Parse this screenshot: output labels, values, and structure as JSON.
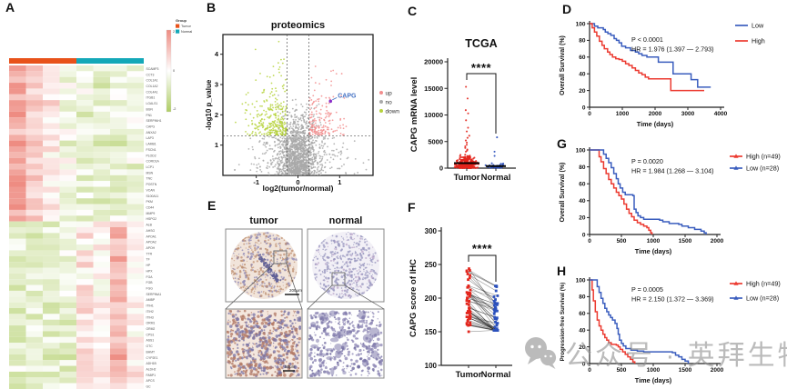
{
  "panels": {
    "a": "A",
    "b": "B",
    "c": "C",
    "d": "D",
    "e": "E",
    "f": "F",
    "g": "G",
    "h": "H"
  },
  "watermark": {
    "text": "公众号 · 英拜生物",
    "icon": "wechat-icon"
  },
  "chart_data": [
    {
      "panel": "A",
      "type": "heatmap",
      "title": "",
      "n_cols": 8,
      "n_up_rows": 27,
      "col_groups": [
        {
          "label": "Tumor",
          "color": "#e8521a",
          "cols": 4
        },
        {
          "label": "Normal",
          "color": "#14a8b8",
          "cols": 4
        }
      ],
      "legend_title": "Group",
      "colorbar_ticks": [
        "2",
        "0",
        "-2"
      ],
      "color_high": "#ee8c82",
      "color_mid": "#ffffff",
      "color_low": "#afcd64",
      "row_pattern_up": [
        1.7,
        1.0,
        0.35,
        -0.3,
        -0.5,
        -0.65,
        -0.55,
        -0.4
      ],
      "row_pattern_down": [
        -0.75,
        -0.6,
        -0.7,
        -0.5,
        0.45,
        0.25,
        1.1,
        0.3
      ],
      "noise": 0.8,
      "seed": 11,
      "gene_labels": [
        "SCAMP3",
        "CCT3",
        "COL1A1",
        "COL1A2",
        "COL4A1",
        "ITGB1",
        "LGALS1",
        "BGN",
        "FN1",
        "SERPINH1",
        "CAPG",
        "ANXA2",
        "LAP3",
        "LAMB1",
        "FSCN1",
        "PLOD2",
        "CORO1A",
        "LCP1",
        "MSN",
        "TNC",
        "POSTN",
        "VCAN",
        "S100A11",
        "PKM",
        "CD44",
        "MMP9",
        "HSPG2",
        "ALB",
        "AHSG",
        "APOA1",
        "APOA2",
        "APOH",
        "TTR",
        "TF",
        "HP",
        "HPX",
        "FGA",
        "FGB",
        "FGG",
        "SERPINA1",
        "AMBP",
        "ITIH1",
        "ITIH2",
        "ITIH3",
        "ORM1",
        "ORM2",
        "CPS1",
        "ASS1",
        "OTC",
        "BHMT",
        "CYP2E1",
        "ADH1B",
        "ALDH2",
        "FABP1",
        "APCS",
        "GC"
      ]
    },
    {
      "panel": "B",
      "type": "scatter",
      "title": "proteomics",
      "xlabel": "log2(tumor/normal)",
      "ylabel": "-log10 p_value",
      "xlim": [
        -1.8,
        1.8
      ],
      "ylim": [
        0,
        4.65
      ],
      "xticks": [
        -1,
        0,
        1
      ],
      "yticks": [
        1,
        2,
        3,
        4
      ],
      "vlines": [
        -0.26,
        0.26
      ],
      "hline": 1.3,
      "legend": [
        {
          "label": "up",
          "color": "#f28e8e"
        },
        {
          "label": "no",
          "color": "#a9a9a9"
        },
        {
          "label": "down",
          "color": "#b6d23c"
        }
      ],
      "highlight": {
        "label": "CAPG",
        "x": 0.78,
        "y": 2.45,
        "point_color": "#8b2fc9",
        "label_color": "#4472c4"
      },
      "counts": {
        "no": 1650,
        "down": 300,
        "up": 175
      },
      "seed": 23
    },
    {
      "panel": "C",
      "type": "scatter",
      "title": "TCGA",
      "ylabel": "CAPG mRNA level",
      "ylim": [
        0,
        20000
      ],
      "yticks": [
        0,
        5000,
        10000,
        15000,
        20000
      ],
      "significance": "****",
      "groups": [
        {
          "label": "Tumor",
          "color": "#e3261d",
          "n": 330,
          "scale": 1000,
          "median": 950,
          "outliers": [
            15300,
            13100,
            10900,
            10300,
            9000,
            7600,
            6900,
            6100,
            5700,
            5200,
            4800,
            4400,
            4100,
            3800,
            3500,
            3300,
            3100
          ]
        },
        {
          "label": "Normal",
          "color": "#2b50bc",
          "n": 45,
          "scale": 300,
          "median": 380,
          "outliers": [
            5800,
            3100,
            2300
          ]
        }
      ],
      "seed": 5
    },
    {
      "panel": "D",
      "type": "line",
      "xlabel": "Time (days)",
      "ylabel": "Overall Survival (%)",
      "xlim": [
        0,
        4000
      ],
      "ylim": [
        0,
        100
      ],
      "xticks": [
        0,
        1000,
        2000,
        3000,
        4000
      ],
      "yticks": [
        0,
        20,
        40,
        60,
        80,
        100
      ],
      "stats": [
        "P < 0.0001",
        "HR = 1.976 (1.397 — 2.793)"
      ],
      "series": [
        {
          "name": "Low",
          "color": "#3a5dbe",
          "points": [
            [
              0,
              100
            ],
            [
              150,
              97
            ],
            [
              250,
              95
            ],
            [
              420,
              93
            ],
            [
              480,
              90
            ],
            [
              560,
              88
            ],
            [
              650,
              86
            ],
            [
              750,
              82
            ],
            [
              820,
              80
            ],
            [
              900,
              77
            ],
            [
              980,
              73
            ],
            [
              1100,
              71
            ],
            [
              1250,
              68
            ],
            [
              1400,
              66
            ],
            [
              1500,
              64
            ],
            [
              1600,
              62
            ],
            [
              1750,
              60
            ],
            [
              2100,
              54
            ],
            [
              2550,
              40
            ],
            [
              3100,
              33
            ],
            [
              3300,
              24
            ],
            [
              3700,
              24
            ]
          ]
        },
        {
          "name": "High",
          "color": "#ec3a30",
          "points": [
            [
              0,
              100
            ],
            [
              80,
              95
            ],
            [
              150,
              90
            ],
            [
              220,
              85
            ],
            [
              300,
              79
            ],
            [
              380,
              74
            ],
            [
              450,
              70
            ],
            [
              550,
              66
            ],
            [
              620,
              63
            ],
            [
              700,
              60
            ],
            [
              800,
              58
            ],
            [
              900,
              57
            ],
            [
              1000,
              55
            ],
            [
              1100,
              52
            ],
            [
              1200,
              50
            ],
            [
              1300,
              47
            ],
            [
              1400,
              44
            ],
            [
              1500,
              41
            ],
            [
              1600,
              39
            ],
            [
              1700,
              36
            ],
            [
              1800,
              34
            ],
            [
              2480,
              20
            ],
            [
              3500,
              20
            ]
          ]
        }
      ]
    },
    {
      "panel": "E",
      "type": "ihc",
      "columns": [
        "tumor",
        "normal"
      ],
      "scale_bars": [
        "200μm",
        "50μm"
      ],
      "seed": 31
    },
    {
      "panel": "F",
      "type": "scatter",
      "ylabel": "CAPG score of IHC",
      "ylim": [
        100,
        300
      ],
      "yticks": [
        100,
        150,
        200,
        250,
        300
      ],
      "groups": [
        {
          "label": "Tumor",
          "color": "#e3261d"
        },
        {
          "label": "Normal",
          "color": "#2b50bc"
        }
      ],
      "n_pairs": 55,
      "significance": "****",
      "seed": 17
    },
    {
      "panel": "G",
      "type": "line",
      "xlabel": "Time (days)",
      "ylabel": "Overall Survival (%)",
      "xlim": [
        0,
        2000
      ],
      "ylim": [
        0,
        100
      ],
      "xticks": [
        0,
        500,
        1000,
        1500,
        2000
      ],
      "yticks": [
        0,
        20,
        40,
        60,
        80,
        100
      ],
      "stats": [
        "P = 0.0020",
        "HR = 1.984 (1.268 — 3.104)"
      ],
      "series": [
        {
          "name": "High (n=49)",
          "color": "#ec3a30",
          "points": [
            [
              0,
              100
            ],
            [
              120,
              100
            ],
            [
              150,
              92
            ],
            [
              180,
              86
            ],
            [
              220,
              78
            ],
            [
              260,
              72
            ],
            [
              300,
              65
            ],
            [
              340,
              60
            ],
            [
              380,
              55
            ],
            [
              420,
              50
            ],
            [
              460,
              46
            ],
            [
              500,
              42
            ],
            [
              540,
              36
            ],
            [
              580,
              30
            ],
            [
              620,
              25
            ],
            [
              660,
              21
            ],
            [
              700,
              17
            ],
            [
              750,
              14
            ],
            [
              800,
              12
            ],
            [
              850,
              10
            ],
            [
              900,
              8
            ],
            [
              930,
              5
            ],
            [
              960,
              2
            ],
            [
              980,
              0
            ]
          ]
        },
        {
          "name": "Low (n=28)",
          "color": "#3a5dbe",
          "points": [
            [
              0,
              100
            ],
            [
              180,
              100
            ],
            [
              220,
              95
            ],
            [
              260,
              90
            ],
            [
              300,
              85
            ],
            [
              340,
              79
            ],
            [
              380,
              72
            ],
            [
              420,
              66
            ],
            [
              450,
              60
            ],
            [
              480,
              55
            ],
            [
              520,
              50
            ],
            [
              560,
              47
            ],
            [
              680,
              46
            ],
            [
              700,
              30
            ],
            [
              730,
              26
            ],
            [
              760,
              22
            ],
            [
              800,
              20
            ],
            [
              850,
              18
            ],
            [
              1100,
              17
            ],
            [
              1150,
              15
            ],
            [
              1250,
              13
            ],
            [
              1400,
              12
            ],
            [
              1450,
              10
            ],
            [
              1550,
              8
            ],
            [
              1650,
              6
            ],
            [
              1750,
              4
            ],
            [
              1800,
              2
            ],
            [
              1830,
              0
            ]
          ]
        }
      ]
    },
    {
      "panel": "H",
      "type": "line",
      "xlabel": "Time (days)",
      "ylabel": "Progression-free Survival (%)",
      "xlim": [
        0,
        2000
      ],
      "ylim": [
        0,
        100
      ],
      "xticks": [
        0,
        500,
        1000,
        1500,
        2000
      ],
      "yticks": [
        0,
        20,
        40,
        60,
        80,
        100
      ],
      "stats": [
        "P = 0.0005",
        "HR = 2.150 (1.372 — 3.369)"
      ],
      "series": [
        {
          "name": "High (n=49)",
          "color": "#ec3a30",
          "points": [
            [
              0,
              100
            ],
            [
              40,
              88
            ],
            [
              60,
              75
            ],
            [
              90,
              62
            ],
            [
              120,
              52
            ],
            [
              150,
              45
            ],
            [
              180,
              40
            ],
            [
              210,
              35
            ],
            [
              240,
              31
            ],
            [
              270,
              28
            ],
            [
              300,
              25
            ],
            [
              340,
              23
            ],
            [
              420,
              22
            ],
            [
              450,
              20
            ],
            [
              480,
              17
            ],
            [
              520,
              14
            ],
            [
              560,
              11
            ],
            [
              600,
              8
            ],
            [
              640,
              5
            ],
            [
              680,
              2
            ],
            [
              710,
              0
            ]
          ]
        },
        {
          "name": "Low (n=28)",
          "color": "#3a5dbe",
          "points": [
            [
              0,
              100
            ],
            [
              90,
              100
            ],
            [
              120,
              92
            ],
            [
              150,
              85
            ],
            [
              180,
              78
            ],
            [
              210,
              72
            ],
            [
              240,
              66
            ],
            [
              270,
              62
            ],
            [
              300,
              58
            ],
            [
              330,
              55
            ],
            [
              360,
              52
            ],
            [
              400,
              48
            ],
            [
              430,
              42
            ],
            [
              450,
              35
            ],
            [
              470,
              28
            ],
            [
              500,
              24
            ],
            [
              530,
              21
            ],
            [
              570,
              18
            ],
            [
              650,
              16
            ],
            [
              750,
              15
            ],
            [
              850,
              14
            ],
            [
              1300,
              13
            ],
            [
              1350,
              10
            ],
            [
              1400,
              8
            ],
            [
              1450,
              5
            ],
            [
              1500,
              3
            ],
            [
              1550,
              0
            ]
          ]
        }
      ]
    }
  ]
}
